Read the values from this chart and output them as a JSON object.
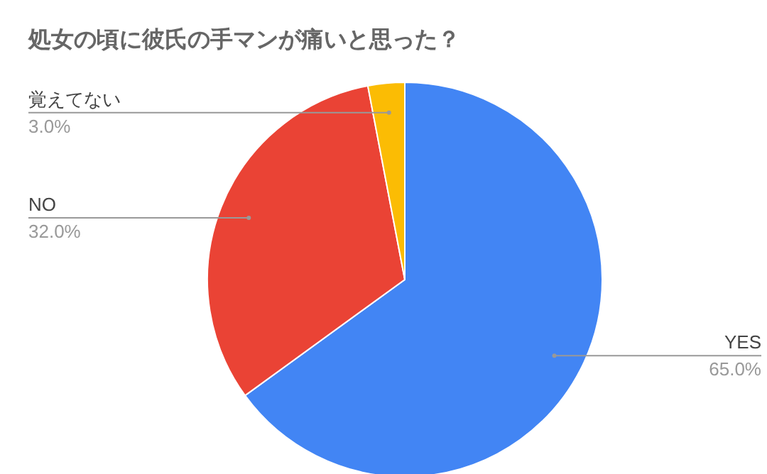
{
  "chart_data": {
    "type": "pie",
    "title": "処女の頃に彼氏の手マンが痛いと思った？",
    "categories": [
      "YES",
      "NO",
      "覚えてない"
    ],
    "values": [
      65,
      32,
      3
    ],
    "colors": [
      "#4285f4",
      "#ea4335",
      "#fbbc04"
    ],
    "value_labels": [
      "65.0%",
      "32.0%",
      "3.0%"
    ],
    "legend": false
  }
}
